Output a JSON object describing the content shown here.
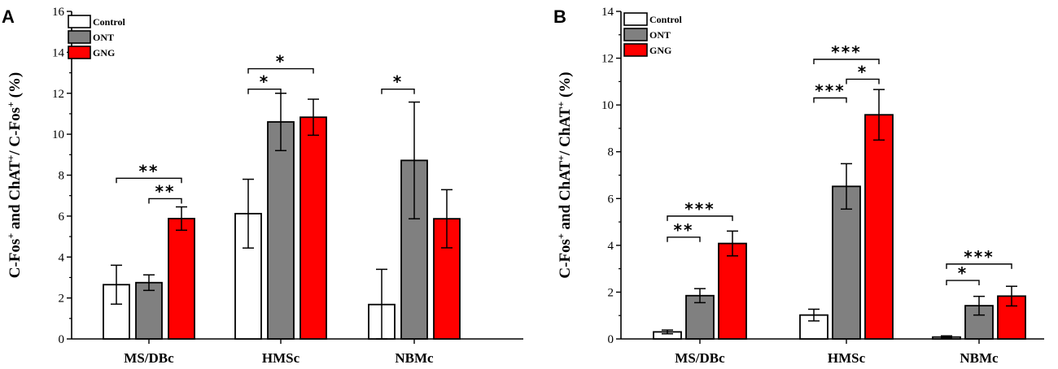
{
  "chart_data": [
    {
      "panel": "A",
      "type": "bar",
      "ylabel_parts": [
        "C-Fos",
        "+",
        " and ChAT",
        "+",
        "/ C-Fos",
        "+",
        " (%)"
      ],
      "ylim": [
        0,
        16
      ],
      "yticks": [
        0,
        2,
        4,
        6,
        8,
        10,
        12,
        14,
        16
      ],
      "categories": [
        "MS/DBc",
        "HMSc",
        "NBMc"
      ],
      "series": [
        {
          "name": "Control",
          "color": "#ffffff",
          "values": [
            2.65,
            6.12,
            1.68
          ],
          "errors": [
            0.95,
            1.68,
            1.72
          ]
        },
        {
          "name": "ONT",
          "color": "#808080",
          "values": [
            2.75,
            10.6,
            8.72
          ],
          "errors": [
            0.38,
            1.4,
            2.85
          ]
        },
        {
          "name": "GNG",
          "color": "#ff0000",
          "values": [
            5.88,
            10.83,
            5.87
          ],
          "errors": [
            0.57,
            0.88,
            1.42
          ]
        }
      ],
      "significance": [
        {
          "category": 0,
          "from": 0,
          "to": 2,
          "y": 7.85,
          "label": "**"
        },
        {
          "category": 0,
          "from": 1,
          "to": 2,
          "y": 6.85,
          "label": "**"
        },
        {
          "category": 1,
          "from": 0,
          "to": 1,
          "y": 12.2,
          "label": "*"
        },
        {
          "category": 1,
          "from": 0,
          "to": 2,
          "y": 13.2,
          "label": "*"
        },
        {
          "category": 2,
          "from": 0,
          "to": 1,
          "y": 12.2,
          "label": "*"
        }
      ]
    },
    {
      "panel": "B",
      "type": "bar",
      "ylabel_parts": [
        "C-Fos",
        "+",
        " and ChAT",
        "+",
        "/ ChAT",
        "+",
        " (%)"
      ],
      "ylim": [
        0,
        14
      ],
      "yticks": [
        0,
        2,
        4,
        6,
        8,
        10,
        12,
        14
      ],
      "categories": [
        "MS/DBc",
        "HMSc",
        "NBMc"
      ],
      "series": [
        {
          "name": "Control",
          "color": "#ffffff",
          "values": [
            0.3,
            1.02,
            0.08
          ],
          "errors": [
            0.08,
            0.25,
            0.05
          ]
        },
        {
          "name": "ONT",
          "color": "#808080",
          "values": [
            1.85,
            6.52,
            1.42
          ],
          "errors": [
            0.3,
            0.97,
            0.4
          ]
        },
        {
          "name": "GNG",
          "color": "#ff0000",
          "values": [
            4.08,
            9.58,
            1.83
          ],
          "errors": [
            0.53,
            1.08,
            0.42
          ]
        }
      ],
      "significance": [
        {
          "category": 0,
          "from": 0,
          "to": 1,
          "y": 4.35,
          "label": "**"
        },
        {
          "category": 0,
          "from": 0,
          "to": 2,
          "y": 5.25,
          "label": "***"
        },
        {
          "category": 1,
          "from": 0,
          "to": 1,
          "y": 10.3,
          "label": "***"
        },
        {
          "category": 1,
          "from": 1,
          "to": 2,
          "y": 11.1,
          "label": "*"
        },
        {
          "category": 1,
          "from": 0,
          "to": 2,
          "y": 11.95,
          "label": "***"
        },
        {
          "category": 2,
          "from": 0,
          "to": 1,
          "y": 2.5,
          "label": "*"
        },
        {
          "category": 2,
          "from": 0,
          "to": 2,
          "y": 3.2,
          "label": "***"
        }
      ]
    }
  ]
}
